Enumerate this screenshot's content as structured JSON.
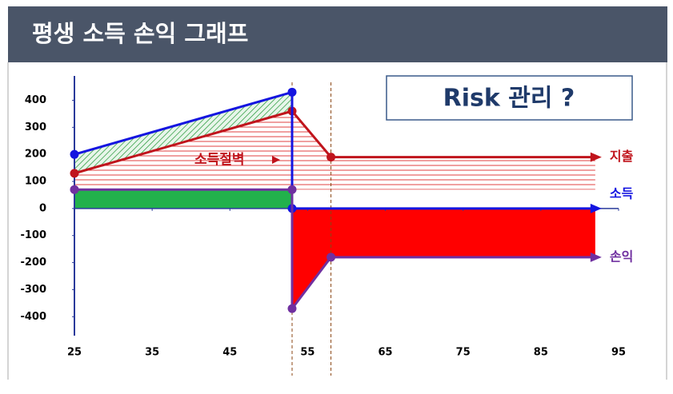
{
  "chart_data": {
    "type": "line",
    "title": "평생 소득 손익 그래프",
    "annotation": "소득절벽",
    "callout": "Risk 관리 ?",
    "xlim": [
      25,
      95
    ],
    "xticks": [
      25,
      35,
      45,
      55,
      65,
      75,
      85,
      95
    ],
    "ylim": [
      -470,
      490
    ],
    "yticks": [
      400,
      300,
      200,
      100,
      0,
      -100,
      -200,
      -300,
      -400
    ],
    "series": [
      {
        "name": "지출",
        "color": "#c0141c",
        "x": [
          25,
          53,
          58,
          92
        ],
        "values": [
          130,
          360,
          190,
          190
        ]
      },
      {
        "name": "소득",
        "color": "#1414e0",
        "x": [
          25,
          53,
          53,
          92
        ],
        "values": [
          200,
          430,
          0,
          0
        ]
      },
      {
        "name": "손익",
        "color": "#7030a0",
        "x": [
          25,
          53,
          53,
          58,
          92
        ],
        "values": [
          70,
          70,
          -370,
          -180,
          -180
        ]
      }
    ]
  }
}
